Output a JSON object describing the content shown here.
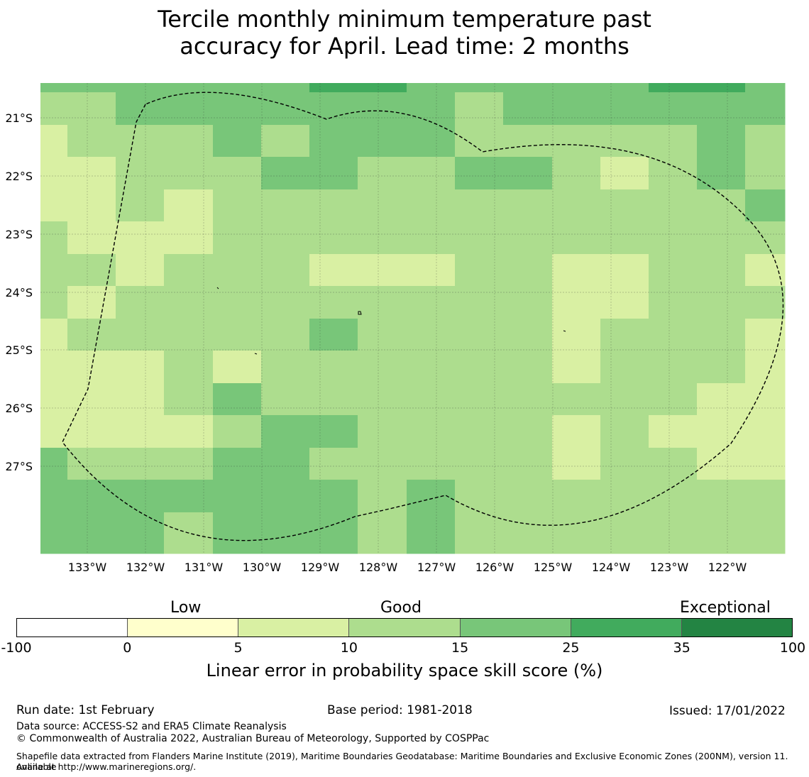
{
  "title": {
    "line1": "Tercile monthly minimum temperature past",
    "line2": "accuracy for April. Lead time: 2 months"
  },
  "map": {
    "lon_labels": [
      "133°W",
      "132°W",
      "131°W",
      "130°W",
      "129°W",
      "128°W",
      "127°W",
      "126°W",
      "125°W",
      "124°W",
      "123°W",
      "122°W"
    ],
    "lat_labels": [
      "21°S",
      "22°S",
      "23°S",
      "24°S",
      "25°S",
      "26°S",
      "27°S"
    ],
    "grid": [
      [
        4,
        4,
        4,
        4,
        4,
        4,
        5,
        5,
        4,
        4,
        4,
        4,
        4,
        5,
        5,
        4
      ],
      [
        3,
        3,
        4,
        4,
        4,
        4,
        4,
        4,
        4,
        3,
        4,
        4,
        4,
        4,
        4,
        4
      ],
      [
        2,
        3,
        3,
        3,
        4,
        3,
        4,
        4,
        4,
        3,
        3,
        3,
        3,
        3,
        4,
        3
      ],
      [
        2,
        2,
        3,
        3,
        3,
        4,
        4,
        3,
        3,
        4,
        4,
        3,
        2,
        3,
        4,
        3
      ],
      [
        2,
        2,
        3,
        2,
        3,
        3,
        3,
        3,
        3,
        3,
        3,
        3,
        3,
        3,
        3,
        4
      ],
      [
        3,
        2,
        2,
        2,
        3,
        3,
        3,
        3,
        3,
        3,
        3,
        3,
        3,
        3,
        3,
        3
      ],
      [
        3,
        3,
        2,
        3,
        3,
        3,
        2,
        2,
        2,
        3,
        3,
        2,
        2,
        3,
        3,
        2
      ],
      [
        3,
        2,
        3,
        3,
        3,
        3,
        3,
        3,
        3,
        3,
        3,
        2,
        2,
        3,
        3,
        3
      ],
      [
        2,
        3,
        3,
        3,
        3,
        3,
        4,
        3,
        3,
        3,
        3,
        2,
        3,
        3,
        3,
        2
      ],
      [
        2,
        2,
        2,
        3,
        2,
        3,
        3,
        3,
        3,
        3,
        3,
        2,
        3,
        3,
        3,
        2
      ],
      [
        2,
        2,
        2,
        3,
        4,
        3,
        3,
        3,
        3,
        3,
        3,
        3,
        3,
        3,
        2,
        2
      ],
      [
        2,
        2,
        2,
        2,
        3,
        4,
        4,
        3,
        3,
        3,
        3,
        2,
        3,
        2,
        2,
        2
      ],
      [
        4,
        3,
        3,
        3,
        4,
        4,
        3,
        3,
        3,
        3,
        3,
        2,
        3,
        3,
        2,
        2
      ],
      [
        4,
        4,
        4,
        4,
        4,
        4,
        4,
        3,
        4,
        3,
        3,
        3,
        3,
        3,
        3,
        3
      ],
      [
        4,
        4,
        4,
        3,
        4,
        4,
        4,
        3,
        4,
        3,
        3,
        3,
        3,
        3,
        3,
        3
      ]
    ]
  },
  "colorbar": {
    "colors": [
      "#ffffff",
      "#ffffcc",
      "#d9f0a3",
      "#addd8e",
      "#78c679",
      "#41ab5d",
      "#238443"
    ],
    "ticks": [
      "-100",
      "0",
      "5",
      "10",
      "15",
      "25",
      "35",
      "100"
    ],
    "category_labels": {
      "low": "Low",
      "good": "Good",
      "exceptional": "Exceptional"
    },
    "title": "Linear error in probability space skill score (%)"
  },
  "footer": {
    "run_date": "Run date: 1st February",
    "base_period": "Base period: 1981-2018",
    "issued": "Issued: 17/01/2022",
    "data_source": "Data source: ACCESS-S2 and ERA5 Climate Reanalysis",
    "copyright": "© Commonwealth of Australia 2022, Australian Bureau of Meteorology, Supported by COSPPac",
    "shapefile_line1": "Shapefile data extracted from Flanders Marine Institute (2019), Maritime Boundaries Geodatabase: Maritime Boundaries and Exclusive Economic Zones (200NM), version 11. Available",
    "shapefile_line2": "online at http://www.marineregions.org/."
  }
}
